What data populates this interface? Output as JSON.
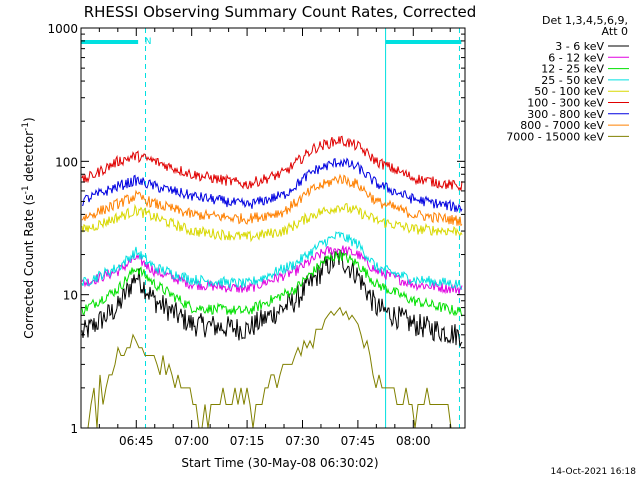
{
  "chart_data": {
    "type": "line",
    "title": "RHESSI Observing Summary Count Rates, Corrected",
    "xlabel": "Start Time (30-May-08 06:30:02)",
    "ylabel_main": "Corrected Count Rate (s",
    "ylabel_sup1": "-1",
    "ylabel_mid": " detector",
    "ylabel_sup2": "-1",
    "ylabel_end": ")",
    "y_scale": "log",
    "ylim": [
      1,
      1000
    ],
    "y_ticks": [
      {
        "value": 1,
        "label": "1"
      },
      {
        "value": 10,
        "label": "10"
      },
      {
        "value": 100,
        "label": "100"
      },
      {
        "value": 1000,
        "label": "1000"
      }
    ],
    "xlim": [
      "06:30:02",
      "08:14:00"
    ],
    "x_ticks": [
      {
        "t": "06:45",
        "label": "06:45"
      },
      {
        "t": "07:00",
        "label": "07:00"
      },
      {
        "t": "07:15",
        "label": "07:15"
      },
      {
        "t": "07:30",
        "label": "07:30"
      },
      {
        "t": "07:45",
        "label": "07:45"
      },
      {
        "t": "08:00",
        "label": "08:00"
      }
    ],
    "legend_header": [
      "Det 1,3,4,5,6,9,",
      "Att 0"
    ],
    "legend_position": "right-outside",
    "series": [
      {
        "name": "3 - 6 keV",
        "color": "#000000",
        "points": [
          [
            "06:30",
            "5"
          ],
          [
            "06:40",
            "8"
          ],
          [
            "06:45",
            "14"
          ],
          [
            "06:50",
            "9"
          ],
          [
            "07:00",
            "6"
          ],
          [
            "07:15",
            "5.5"
          ],
          [
            "07:28",
            "9"
          ],
          [
            "07:36",
            "16"
          ],
          [
            "07:40",
            "19"
          ],
          [
            "07:45",
            "14"
          ],
          [
            "07:50",
            "8"
          ],
          [
            "08:00",
            "6"
          ],
          [
            "08:12",
            "5"
          ]
        ]
      },
      {
        "name": "6 - 12 keV",
        "color": "#e000e0",
        "points": [
          [
            "06:30",
            "12"
          ],
          [
            "06:40",
            "15"
          ],
          [
            "06:45",
            "19"
          ],
          [
            "06:50",
            "15"
          ],
          [
            "07:00",
            "12"
          ],
          [
            "07:15",
            "11"
          ],
          [
            "07:28",
            "15"
          ],
          [
            "07:36",
            "21"
          ],
          [
            "07:40",
            "22"
          ],
          [
            "07:45",
            "20"
          ],
          [
            "07:50",
            "15"
          ],
          [
            "08:00",
            "12"
          ],
          [
            "08:12",
            "11"
          ]
        ]
      },
      {
        "name": "12 - 25 keV",
        "color": "#00e000",
        "points": [
          [
            "06:30",
            "7.5"
          ],
          [
            "06:40",
            "11"
          ],
          [
            "06:45",
            "16"
          ],
          [
            "06:50",
            "12"
          ],
          [
            "07:00",
            "8"
          ],
          [
            "07:15",
            "7.5"
          ],
          [
            "07:28",
            "11"
          ],
          [
            "07:36",
            "18"
          ],
          [
            "07:40",
            "20"
          ],
          [
            "07:45",
            "17"
          ],
          [
            "07:50",
            "12"
          ],
          [
            "08:00",
            "9"
          ],
          [
            "08:12",
            "7.5"
          ]
        ]
      },
      {
        "name": "25 - 50 keV",
        "color": "#00e0e0",
        "points": [
          [
            "06:30",
            "12"
          ],
          [
            "06:40",
            "16"
          ],
          [
            "06:45",
            "21"
          ],
          [
            "06:50",
            "16"
          ],
          [
            "07:00",
            "13"
          ],
          [
            "07:15",
            "12"
          ],
          [
            "07:28",
            "17"
          ],
          [
            "07:36",
            "25"
          ],
          [
            "07:40",
            "28"
          ],
          [
            "07:45",
            "24"
          ],
          [
            "07:50",
            "16"
          ],
          [
            "08:00",
            "13"
          ],
          [
            "08:12",
            "12"
          ]
        ]
      },
      {
        "name": "50 - 100 keV",
        "color": "#d8d800",
        "points": [
          [
            "06:30",
            "30"
          ],
          [
            "06:40",
            "38"
          ],
          [
            "06:45",
            "43"
          ],
          [
            "06:50",
            "38"
          ],
          [
            "07:00",
            "30"
          ],
          [
            "07:15",
            "27"
          ],
          [
            "07:25",
            "30"
          ],
          [
            "07:33",
            "40"
          ],
          [
            "07:40",
            "46"
          ],
          [
            "07:45",
            "42"
          ],
          [
            "07:50",
            "36"
          ],
          [
            "08:00",
            "31"
          ],
          [
            "08:12",
            "30"
          ]
        ]
      },
      {
        "name": "100 - 300 keV",
        "color": "#e00000",
        "points": [
          [
            "06:30",
            "70"
          ],
          [
            "06:40",
            "100"
          ],
          [
            "06:45",
            "110"
          ],
          [
            "06:50",
            "100"
          ],
          [
            "07:00",
            "80"
          ],
          [
            "07:15",
            "67"
          ],
          [
            "07:25",
            "82"
          ],
          [
            "07:33",
            "125"
          ],
          [
            "07:40",
            "145"
          ],
          [
            "07:45",
            "130"
          ],
          [
            "07:50",
            "100"
          ],
          [
            "08:00",
            "75"
          ],
          [
            "08:12",
            "65"
          ]
        ]
      },
      {
        "name": "300 - 800 keV",
        "color": "#0000e0",
        "points": [
          [
            "06:30",
            "50"
          ],
          [
            "06:40",
            "65"
          ],
          [
            "06:45",
            "72"
          ],
          [
            "06:50",
            "65"
          ],
          [
            "07:00",
            "55"
          ],
          [
            "07:15",
            "47"
          ],
          [
            "07:25",
            "56"
          ],
          [
            "07:33",
            "85"
          ],
          [
            "07:40",
            "100"
          ],
          [
            "07:45",
            "90"
          ],
          [
            "07:50",
            "68"
          ],
          [
            "08:00",
            "52"
          ],
          [
            "08:12",
            "45"
          ]
        ]
      },
      {
        "name": "800 - 7000 keV",
        "color": "#ff8000",
        "points": [
          [
            "06:30",
            "37"
          ],
          [
            "06:40",
            "48"
          ],
          [
            "06:45",
            "55"
          ],
          [
            "06:50",
            "48"
          ],
          [
            "07:00",
            "40"
          ],
          [
            "07:15",
            "37"
          ],
          [
            "07:25",
            "42"
          ],
          [
            "07:33",
            "62"
          ],
          [
            "07:40",
            "75"
          ],
          [
            "07:45",
            "67"
          ],
          [
            "07:50",
            "50"
          ],
          [
            "08:00",
            "40"
          ],
          [
            "08:12",
            "36"
          ]
        ]
      },
      {
        "name": "7000 - 15000 keV",
        "color": "#808000",
        "points": [
          [
            "06:30",
            "1"
          ],
          [
            "06:36",
            "2"
          ],
          [
            "06:40",
            "3.5"
          ],
          [
            "06:45",
            "4.7"
          ],
          [
            "06:50",
            "3.3"
          ],
          [
            "06:55",
            "2.3"
          ],
          [
            "07:00",
            "1.6"
          ],
          [
            "07:15",
            "1.4"
          ],
          [
            "07:22",
            "2"
          ],
          [
            "07:28",
            "3.3"
          ],
          [
            "07:36",
            "6"
          ],
          [
            "07:40",
            "8"
          ],
          [
            "07:45",
            "6.5"
          ],
          [
            "07:48",
            "3.5"
          ],
          [
            "07:52",
            "2"
          ],
          [
            "08:00",
            "1.5"
          ],
          [
            "08:12",
            "1.2"
          ]
        ]
      }
    ],
    "markers": {
      "color": "#00e0e0",
      "solid_lines_time": [
        "06:30:02",
        "07:52:30"
      ],
      "dashed_lines_time": [
        "06:47:30",
        "08:12:30"
      ],
      "night_bars": [
        {
          "from": "06:30:02",
          "to": "06:45:30"
        },
        {
          "from": "07:52:30",
          "to": "08:13:00"
        }
      ],
      "flag_label": "N"
    },
    "timestamp": "14-Oct-2021 16:18"
  }
}
